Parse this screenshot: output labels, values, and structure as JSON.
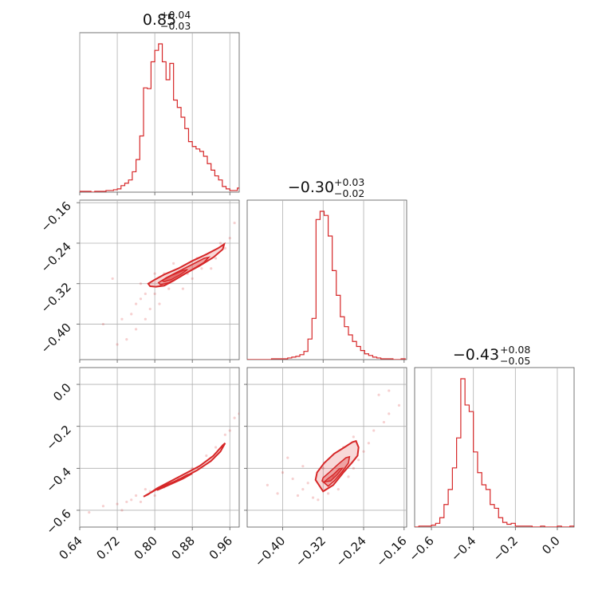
{
  "chart_data": {
    "type": "corner",
    "colors": {
      "series": "#d62728",
      "grid": "#b0b0b0",
      "frame": "#555555"
    },
    "grid": true,
    "parameters": [
      {
        "id": "p0",
        "title": {
          "median": "0.85",
          "plus": "+0.04",
          "minus": "−0.03"
        },
        "range": [
          0.64,
          0.98
        ],
        "ticks": [
          0.64,
          0.72,
          0.8,
          0.88,
          0.96
        ],
        "tick_labels": [
          "0.64",
          "0.72",
          "0.80",
          "0.88",
          "0.96"
        ]
      },
      {
        "id": "p1",
        "title": {
          "median": "−0.30",
          "plus": "+0.03",
          "minus": "−0.02"
        },
        "range": [
          -0.47,
          -0.155
        ],
        "ticks": [
          -0.4,
          -0.32,
          -0.24,
          -0.16
        ],
        "tick_labels": [
          "−0.40",
          "−0.32",
          "−0.24",
          "−0.16"
        ]
      },
      {
        "id": "p2",
        "title": {
          "median": "−0.43",
          "plus": "+0.08",
          "minus": "−0.05"
        },
        "range": [
          -0.68,
          0.08
        ],
        "ticks": [
          -0.6,
          -0.4,
          -0.2,
          0.0
        ],
        "tick_labels": [
          "−0.6",
          "−0.4",
          "−0.2",
          "0.0"
        ]
      }
    ],
    "histograms": [
      {
        "param": "p0",
        "edges": [
          0.64,
          0.648,
          0.656,
          0.664,
          0.672,
          0.68,
          0.688,
          0.696,
          0.704,
          0.712,
          0.72,
          0.728,
          0.736,
          0.744,
          0.752,
          0.76,
          0.768,
          0.776,
          0.784,
          0.792,
          0.8,
          0.808,
          0.816,
          0.824,
          0.832,
          0.84,
          0.848,
          0.856,
          0.864,
          0.872,
          0.88,
          0.888,
          0.896,
          0.904,
          0.912,
          0.92,
          0.928,
          0.936,
          0.944,
          0.952,
          0.96,
          0.968,
          0.976,
          0.984
        ],
        "counts": [
          1,
          1,
          1,
          0,
          1,
          1,
          1,
          2,
          2,
          3,
          4,
          8,
          11,
          15,
          25,
          40,
          69,
          128,
          127,
          160,
          174,
          182,
          160,
          138,
          158,
          113,
          104,
          92,
          78,
          62,
          56,
          53,
          50,
          44,
          35,
          27,
          20,
          15,
          7,
          4,
          2,
          2,
          5
        ]
      },
      {
        "param": "p1",
        "edges": [
          -0.47,
          -0.462,
          -0.454,
          -0.446,
          -0.438,
          -0.43,
          -0.422,
          -0.414,
          -0.406,
          -0.398,
          -0.39,
          -0.382,
          -0.374,
          -0.366,
          -0.358,
          -0.35,
          -0.342,
          -0.334,
          -0.326,
          -0.318,
          -0.31,
          -0.302,
          -0.294,
          -0.286,
          -0.278,
          -0.27,
          -0.262,
          -0.254,
          -0.246,
          -0.238,
          -0.23,
          -0.222,
          -0.214,
          -0.206,
          -0.198,
          -0.19,
          -0.182,
          -0.174,
          -0.166,
          -0.158
        ],
        "counts": [
          0,
          0,
          0,
          0,
          0,
          0,
          1,
          1,
          1,
          1,
          2,
          3,
          4,
          6,
          10,
          25,
          50,
          170,
          180,
          175,
          150,
          108,
          78,
          52,
          40,
          30,
          22,
          16,
          11,
          7,
          5,
          3,
          2,
          1,
          1,
          1,
          0,
          0,
          1
        ]
      },
      {
        "param": "p2",
        "edges": [
          -0.68,
          -0.66,
          -0.64,
          -0.62,
          -0.6,
          -0.58,
          -0.56,
          -0.54,
          -0.52,
          -0.5,
          -0.48,
          -0.46,
          -0.44,
          -0.42,
          -0.4,
          -0.38,
          -0.36,
          -0.34,
          -0.32,
          -0.3,
          -0.28,
          -0.26,
          -0.24,
          -0.22,
          -0.2,
          -0.18,
          -0.16,
          -0.14,
          -0.12,
          -0.1,
          -0.08,
          -0.06,
          -0.04,
          -0.02,
          0.0,
          0.02,
          0.04,
          0.06,
          0.08
        ],
        "counts": [
          0,
          1,
          1,
          1,
          2,
          4,
          10,
          24,
          40,
          63,
          95,
          158,
          130,
          123,
          80,
          58,
          45,
          40,
          24,
          20,
          10,
          5,
          3,
          4,
          1,
          1,
          1,
          1,
          0,
          0,
          1,
          0,
          0,
          0,
          1,
          0,
          0,
          1
        ]
      }
    ],
    "joint_panels": [
      {
        "x": "p0",
        "y": "p1",
        "contours": [
          [
            [
              0.786,
              -0.32
            ],
            [
              0.8,
              -0.312
            ],
            [
              0.82,
              -0.302
            ],
            [
              0.85,
              -0.29
            ],
            [
              0.88,
              -0.275
            ],
            [
              0.91,
              -0.262
            ],
            [
              0.935,
              -0.25
            ],
            [
              0.948,
              -0.242
            ],
            [
              0.945,
              -0.252
            ],
            [
              0.925,
              -0.268
            ],
            [
              0.895,
              -0.285
            ],
            [
              0.865,
              -0.3
            ],
            [
              0.84,
              -0.314
            ],
            [
              0.82,
              -0.324
            ],
            [
              0.802,
              -0.326
            ],
            [
              0.79,
              -0.325
            ]
          ],
          [
            [
              0.808,
              -0.318
            ],
            [
              0.825,
              -0.308
            ],
            [
              0.85,
              -0.296
            ],
            [
              0.88,
              -0.282
            ],
            [
              0.905,
              -0.27
            ],
            [
              0.915,
              -0.268
            ],
            [
              0.905,
              -0.278
            ],
            [
              0.88,
              -0.292
            ],
            [
              0.855,
              -0.306
            ],
            [
              0.83,
              -0.318
            ],
            [
              0.812,
              -0.322
            ]
          ],
          [
            [
              0.815,
              -0.314
            ],
            [
              0.835,
              -0.304
            ],
            [
              0.86,
              -0.294
            ],
            [
              0.87,
              -0.292
            ],
            [
              0.855,
              -0.302
            ],
            [
              0.835,
              -0.312
            ],
            [
              0.82,
              -0.316
            ]
          ]
        ],
        "scatter": [
          [
            0.71,
            -0.31
          ],
          [
            0.73,
            -0.39
          ],
          [
            0.75,
            -0.38
          ],
          [
            0.76,
            -0.36
          ],
          [
            0.77,
            -0.35
          ],
          [
            0.78,
            -0.34
          ],
          [
            0.76,
            -0.41
          ],
          [
            0.74,
            -0.43
          ],
          [
            0.79,
            -0.37
          ],
          [
            0.8,
            -0.34
          ],
          [
            0.81,
            -0.36
          ],
          [
            0.83,
            -0.33
          ],
          [
            0.86,
            -0.33
          ],
          [
            0.88,
            -0.31
          ],
          [
            0.9,
            -0.29
          ],
          [
            0.93,
            -0.27
          ],
          [
            0.95,
            -0.25
          ],
          [
            0.96,
            -0.23
          ],
          [
            0.97,
            -0.2
          ],
          [
            0.84,
            -0.28
          ],
          [
            0.82,
            -0.3
          ],
          [
            0.78,
            -0.39
          ],
          [
            0.72,
            -0.44
          ],
          [
            0.92,
            -0.29
          ],
          [
            0.89,
            -0.27
          ],
          [
            0.69,
            -0.4
          ],
          [
            0.77,
            -0.32
          ],
          [
            0.87,
            -0.3
          ],
          [
            0.94,
            -0.24
          ],
          [
            0.8,
            -0.3
          ]
        ]
      },
      {
        "x": "p0",
        "y": "p2",
        "contours": [
          [
            [
              0.776,
              -0.535
            ],
            [
              0.8,
              -0.505
            ],
            [
              0.83,
              -0.475
            ],
            [
              0.86,
              -0.445
            ],
            [
              0.89,
              -0.41
            ],
            [
              0.92,
              -0.365
            ],
            [
              0.94,
              -0.32
            ],
            [
              0.95,
              -0.28
            ],
            [
              0.945,
              -0.29
            ],
            [
              0.925,
              -0.34
            ],
            [
              0.895,
              -0.39
            ],
            [
              0.865,
              -0.425
            ],
            [
              0.835,
              -0.46
            ],
            [
              0.805,
              -0.495
            ],
            [
              0.785,
              -0.525
            ]
          ],
          [
            [
              0.805,
              -0.505
            ],
            [
              0.83,
              -0.48
            ],
            [
              0.86,
              -0.45
            ],
            [
              0.88,
              -0.425
            ],
            [
              0.87,
              -0.43
            ],
            [
              0.845,
              -0.46
            ],
            [
              0.82,
              -0.49
            ]
          ],
          [
            [
              0.815,
              -0.495
            ],
            [
              0.835,
              -0.475
            ],
            [
              0.855,
              -0.455
            ],
            [
              0.845,
              -0.463
            ],
            [
              0.825,
              -0.485
            ]
          ]
        ],
        "scatter": [
          [
            0.66,
            -0.61
          ],
          [
            0.69,
            -0.58
          ],
          [
            0.72,
            -0.57
          ],
          [
            0.74,
            -0.56
          ],
          [
            0.75,
            -0.55
          ],
          [
            0.76,
            -0.53
          ],
          [
            0.77,
            -0.56
          ],
          [
            0.73,
            -0.6
          ],
          [
            0.79,
            -0.51
          ],
          [
            0.96,
            -0.22
          ],
          [
            0.97,
            -0.16
          ],
          [
            0.98,
            -0.14
          ],
          [
            0.95,
            -0.24
          ],
          [
            0.93,
            -0.3
          ],
          [
            0.91,
            -0.34
          ],
          [
            0.88,
            -0.4
          ],
          [
            0.85,
            -0.45
          ],
          [
            0.82,
            -0.49
          ],
          [
            0.78,
            -0.5
          ],
          [
            0.8,
            -0.53
          ]
        ]
      },
      {
        "x": "p1",
        "y": "p2",
        "contours": [
          [
            [
              -0.335,
              -0.455
            ],
            [
              -0.32,
              -0.51
            ],
            [
              -0.3,
              -0.48
            ],
            [
              -0.28,
              -0.42
            ],
            [
              -0.262,
              -0.37
            ],
            [
              -0.252,
              -0.34
            ],
            [
              -0.25,
              -0.3
            ],
            [
              -0.255,
              -0.27
            ],
            [
              -0.262,
              -0.275
            ],
            [
              -0.278,
              -0.3
            ],
            [
              -0.298,
              -0.33
            ],
            [
              -0.318,
              -0.375
            ],
            [
              -0.332,
              -0.42
            ]
          ],
          [
            [
              -0.322,
              -0.46
            ],
            [
              -0.31,
              -0.485
            ],
            [
              -0.298,
              -0.46
            ],
            [
              -0.282,
              -0.415
            ],
            [
              -0.27,
              -0.375
            ],
            [
              -0.268,
              -0.345
            ],
            [
              -0.275,
              -0.35
            ],
            [
              -0.29,
              -0.38
            ],
            [
              -0.308,
              -0.42
            ],
            [
              -0.32,
              -0.445
            ]
          ],
          [
            [
              -0.318,
              -0.465
            ],
            [
              -0.305,
              -0.46
            ],
            [
              -0.292,
              -0.43
            ],
            [
              -0.282,
              -0.4
            ],
            [
              -0.288,
              -0.402
            ],
            [
              -0.3,
              -0.43
            ],
            [
              -0.312,
              -0.452
            ]
          ]
        ],
        "scatter": [
          [
            -0.43,
            -0.48
          ],
          [
            -0.41,
            -0.52
          ],
          [
            -0.4,
            -0.42
          ],
          [
            -0.38,
            -0.45
          ],
          [
            -0.37,
            -0.53
          ],
          [
            -0.36,
            -0.5
          ],
          [
            -0.35,
            -0.47
          ],
          [
            -0.34,
            -0.54
          ],
          [
            -0.33,
            -0.55
          ],
          [
            -0.31,
            -0.52
          ],
          [
            -0.29,
            -0.5
          ],
          [
            -0.27,
            -0.44
          ],
          [
            -0.25,
            -0.36
          ],
          [
            -0.23,
            -0.28
          ],
          [
            -0.22,
            -0.22
          ],
          [
            -0.2,
            -0.18
          ],
          [
            -0.19,
            -0.14
          ],
          [
            -0.17,
            -0.1
          ],
          [
            -0.19,
            -0.03
          ],
          [
            -0.21,
            -0.05
          ],
          [
            -0.24,
            -0.32
          ],
          [
            -0.26,
            -0.4
          ],
          [
            -0.3,
            -0.44
          ],
          [
            -0.32,
            -0.4
          ],
          [
            -0.36,
            -0.39
          ],
          [
            -0.39,
            -0.35
          ],
          [
            -0.28,
            -0.3
          ],
          [
            -0.26,
            -0.25
          ]
        ]
      }
    ]
  }
}
